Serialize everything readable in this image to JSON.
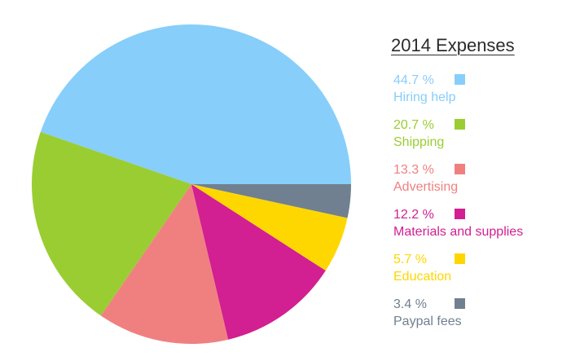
{
  "chart_data": {
    "type": "pie",
    "title": "2014 Expenses",
    "slices": [
      {
        "label": "Hiring help",
        "value": 44.7,
        "pct_label": "44.7 %",
        "color": "#87cefa"
      },
      {
        "label": "Shipping",
        "value": 20.7,
        "pct_label": "20.7 %",
        "color": "#9acd32"
      },
      {
        "label": "Advertising",
        "value": 13.3,
        "pct_label": "13.3 %",
        "color": "#f08080"
      },
      {
        "label": "Materials and supplies",
        "value": 12.2,
        "pct_label": "12.2 %",
        "color": "#d21f91"
      },
      {
        "label": "Education",
        "value": 5.7,
        "pct_label": "5.7 %",
        "color": "#ffd700"
      },
      {
        "label": "Paypal fees",
        "value": 3.4,
        "pct_label": "3.4 %",
        "color": "#708090"
      }
    ],
    "start_angle": "3 o'clock",
    "direction": "counterclockwise",
    "legend_position": "right"
  }
}
